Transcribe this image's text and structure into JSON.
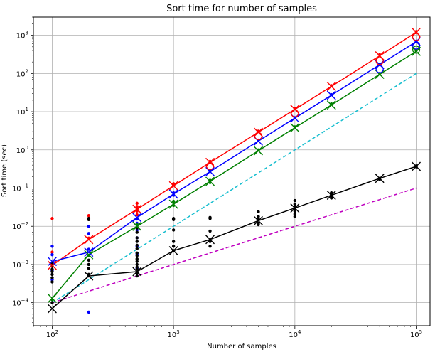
{
  "chart_data": {
    "type": "line",
    "title": "Sort time for number of samples",
    "xlabel": "Number of samples",
    "ylabel": "Sort time (sec)",
    "xscale": "log",
    "yscale": "log",
    "xlim": [
      70,
      130000
    ],
    "ylim": [
      2.5e-05,
      3000
    ],
    "grid": true,
    "x_ticks": [
      {
        "value": 100,
        "base": "10",
        "exp": "2"
      },
      {
        "value": 1000,
        "base": "10",
        "exp": "3"
      },
      {
        "value": 10000,
        "base": "10",
        "exp": "4"
      },
      {
        "value": 100000,
        "base": "10",
        "exp": "5"
      }
    ],
    "y_ticks": [
      {
        "value": 0.0001,
        "base": "10",
        "exp": "−4"
      },
      {
        "value": 0.001,
        "base": "10",
        "exp": "−3"
      },
      {
        "value": 0.01,
        "base": "10",
        "exp": "−2"
      },
      {
        "value": 0.1,
        "base": "10",
        "exp": "−1"
      },
      {
        "value": 1,
        "base": "10",
        "exp": "0"
      },
      {
        "value": 10,
        "base": "10",
        "exp": "1"
      },
      {
        "value": 100,
        "base": "10",
        "exp": "2"
      },
      {
        "value": 1000,
        "base": "10",
        "exp": "3"
      }
    ],
    "x": [
      100,
      200,
      500,
      1000,
      2000,
      5000,
      10000,
      20000,
      50000,
      100000
    ],
    "series": [
      {
        "color": "#ff0000",
        "style": "solid",
        "marker": "x",
        "values": [
          0.00095,
          0.0045,
          0.028,
          0.115,
          0.47,
          2.9,
          11.5,
          46,
          290,
          1200
        ]
      },
      {
        "color": "#0000ff",
        "style": "solid",
        "marker": "x",
        "values": [
          0.0012,
          0.0021,
          0.017,
          0.07,
          0.27,
          1.7,
          6.8,
          27,
          170,
          680
        ]
      },
      {
        "color": "#008000",
        "style": "solid",
        "marker": "x",
        "values": [
          0.00013,
          0.0018,
          0.01,
          0.038,
          0.15,
          0.95,
          3.8,
          15,
          95,
          380
        ]
      },
      {
        "color": "#000000",
        "style": "solid",
        "marker": "x",
        "values": [
          7e-05,
          0.0005,
          0.00065,
          0.0023,
          0.0045,
          0.014,
          0.03,
          0.065,
          0.18,
          0.37
        ]
      },
      {
        "color": "#17becf",
        "style": "dashed",
        "marker": "none",
        "values": [
          0.0001,
          0.0004,
          0.0025,
          0.01,
          0.04,
          0.25,
          1,
          4,
          25,
          100
        ]
      },
      {
        "color": "#bf00bf",
        "style": "dashed",
        "marker": "none",
        "values": [
          0.0001,
          0.0002,
          0.0005,
          0.001,
          0.002,
          0.005,
          0.01,
          0.02,
          0.05,
          0.1
        ]
      }
    ],
    "scatter": [
      {
        "color": "#ff0000",
        "points": [
          [
            100,
            0.016
          ],
          [
            100,
            0.0021
          ],
          [
            100,
            0.0011
          ],
          [
            200,
            0.019
          ],
          [
            200,
            0.016
          ],
          [
            200,
            0.0049
          ],
          [
            500,
            0.04
          ],
          [
            500,
            0.033
          ],
          [
            500,
            0.028
          ],
          [
            500,
            0.025
          ],
          [
            500,
            0.02
          ],
          [
            1000,
            0.13
          ],
          [
            1000,
            0.12
          ],
          [
            2000,
            0.5
          ],
          [
            5000,
            3.1
          ],
          [
            10000,
            12
          ],
          [
            20000,
            48
          ],
          [
            50000,
            310
          ],
          [
            100000,
            1250
          ]
        ]
      },
      {
        "color": "#0000ff",
        "points": [
          [
            100,
            0.003
          ],
          [
            100,
            0.0018
          ],
          [
            100,
            0.0007
          ],
          [
            100,
            0.0004
          ],
          [
            200,
            0.01
          ],
          [
            200,
            0.0065
          ],
          [
            200,
            0.0025
          ],
          [
            200,
            0.0017
          ],
          [
            200,
            5.65e-05
          ],
          [
            500,
            0.0155
          ],
          [
            500,
            0.012
          ],
          [
            500,
            0.008
          ],
          [
            500,
            0.005
          ],
          [
            500,
            0.003
          ],
          [
            500,
            0.0019
          ],
          [
            500,
            0.0008
          ],
          [
            1000,
            0.075
          ],
          [
            1000,
            0.065
          ],
          [
            2000,
            0.28
          ],
          [
            5000,
            1.8
          ],
          [
            10000,
            7
          ],
          [
            20000,
            28
          ],
          [
            50000,
            175
          ],
          [
            100000,
            700
          ]
        ]
      },
      {
        "color": "#008000",
        "points": [
          [
            100,
            0.00012
          ],
          [
            200,
            0.0017
          ],
          [
            500,
            0.011
          ],
          [
            500,
            0.0095
          ],
          [
            1000,
            0.045
          ],
          [
            1000,
            0.035
          ],
          [
            2000,
            0.16
          ],
          [
            2000,
            0.14
          ],
          [
            5000,
            1
          ],
          [
            10000,
            4
          ],
          [
            20000,
            16
          ],
          [
            50000,
            100
          ],
          [
            100000,
            400
          ]
        ]
      },
      {
        "color": "#000000",
        "points": [
          [
            100,
            0.0011
          ],
          [
            100,
            0.0009
          ],
          [
            100,
            0.00075
          ],
          [
            100,
            0.00065
          ],
          [
            100,
            0.00055
          ],
          [
            100,
            0.00045
          ],
          [
            100,
            0.00035
          ],
          [
            100,
            0.0001
          ],
          [
            200,
            0.016
          ],
          [
            200,
            0.015
          ],
          [
            200,
            0.0013
          ],
          [
            200,
            0.001
          ],
          [
            200,
            0.0008
          ],
          [
            200,
            0.00055
          ],
          [
            200,
            0.0005
          ],
          [
            500,
            0.009
          ],
          [
            500,
            0.007
          ],
          [
            500,
            0.005
          ],
          [
            500,
            0.004
          ],
          [
            500,
            0.0032
          ],
          [
            500,
            0.0026
          ],
          [
            500,
            0.002
          ],
          [
            500,
            0.0017
          ],
          [
            500,
            0.0014
          ],
          [
            500,
            0.0012
          ],
          [
            500,
            0.001
          ],
          [
            500,
            0.00085
          ],
          [
            500,
            0.00075
          ],
          [
            500,
            0.0006
          ],
          [
            500,
            0.0005
          ],
          [
            1000,
            0.016
          ],
          [
            1000,
            0.015
          ],
          [
            1000,
            0.008
          ],
          [
            1000,
            0.004
          ],
          [
            1000,
            0.003
          ],
          [
            1000,
            0.0023
          ],
          [
            2000,
            0.017
          ],
          [
            2000,
            0.016
          ],
          [
            2000,
            0.0075
          ],
          [
            2000,
            0.004
          ],
          [
            2000,
            0.003
          ],
          [
            5000,
            0.024
          ],
          [
            5000,
            0.018
          ],
          [
            5000,
            0.015
          ],
          [
            5000,
            0.012
          ],
          [
            5000,
            0.011
          ],
          [
            10000,
            0.047
          ],
          [
            10000,
            0.038
          ],
          [
            10000,
            0.032
          ],
          [
            10000,
            0.028
          ],
          [
            10000,
            0.025
          ],
          [
            10000,
            0.022
          ],
          [
            10000,
            0.02
          ],
          [
            10000,
            0.018
          ],
          [
            20000,
            0.075
          ],
          [
            20000,
            0.07
          ],
          [
            20000,
            0.065
          ],
          [
            20000,
            0.06
          ],
          [
            20000,
            0.055
          ],
          [
            50000,
            0.18
          ],
          [
            50000,
            0.17
          ],
          [
            100000,
            0.38
          ],
          [
            100000,
            0.36
          ]
        ]
      }
    ],
    "circle_markers": [
      {
        "color": "#ff0000",
        "points": [
          [
            2000,
            0.38
          ],
          [
            5000,
            2.3
          ],
          [
            10000,
            9
          ],
          [
            50000,
            210
          ],
          [
            100000,
            900
          ]
        ]
      },
      {
        "color": "#0000ff",
        "points": [
          [
            50000,
            130
          ],
          [
            100000,
            540
          ]
        ]
      },
      {
        "color": "#008000",
        "points": [
          [
            100000,
            420
          ]
        ]
      }
    ]
  }
}
